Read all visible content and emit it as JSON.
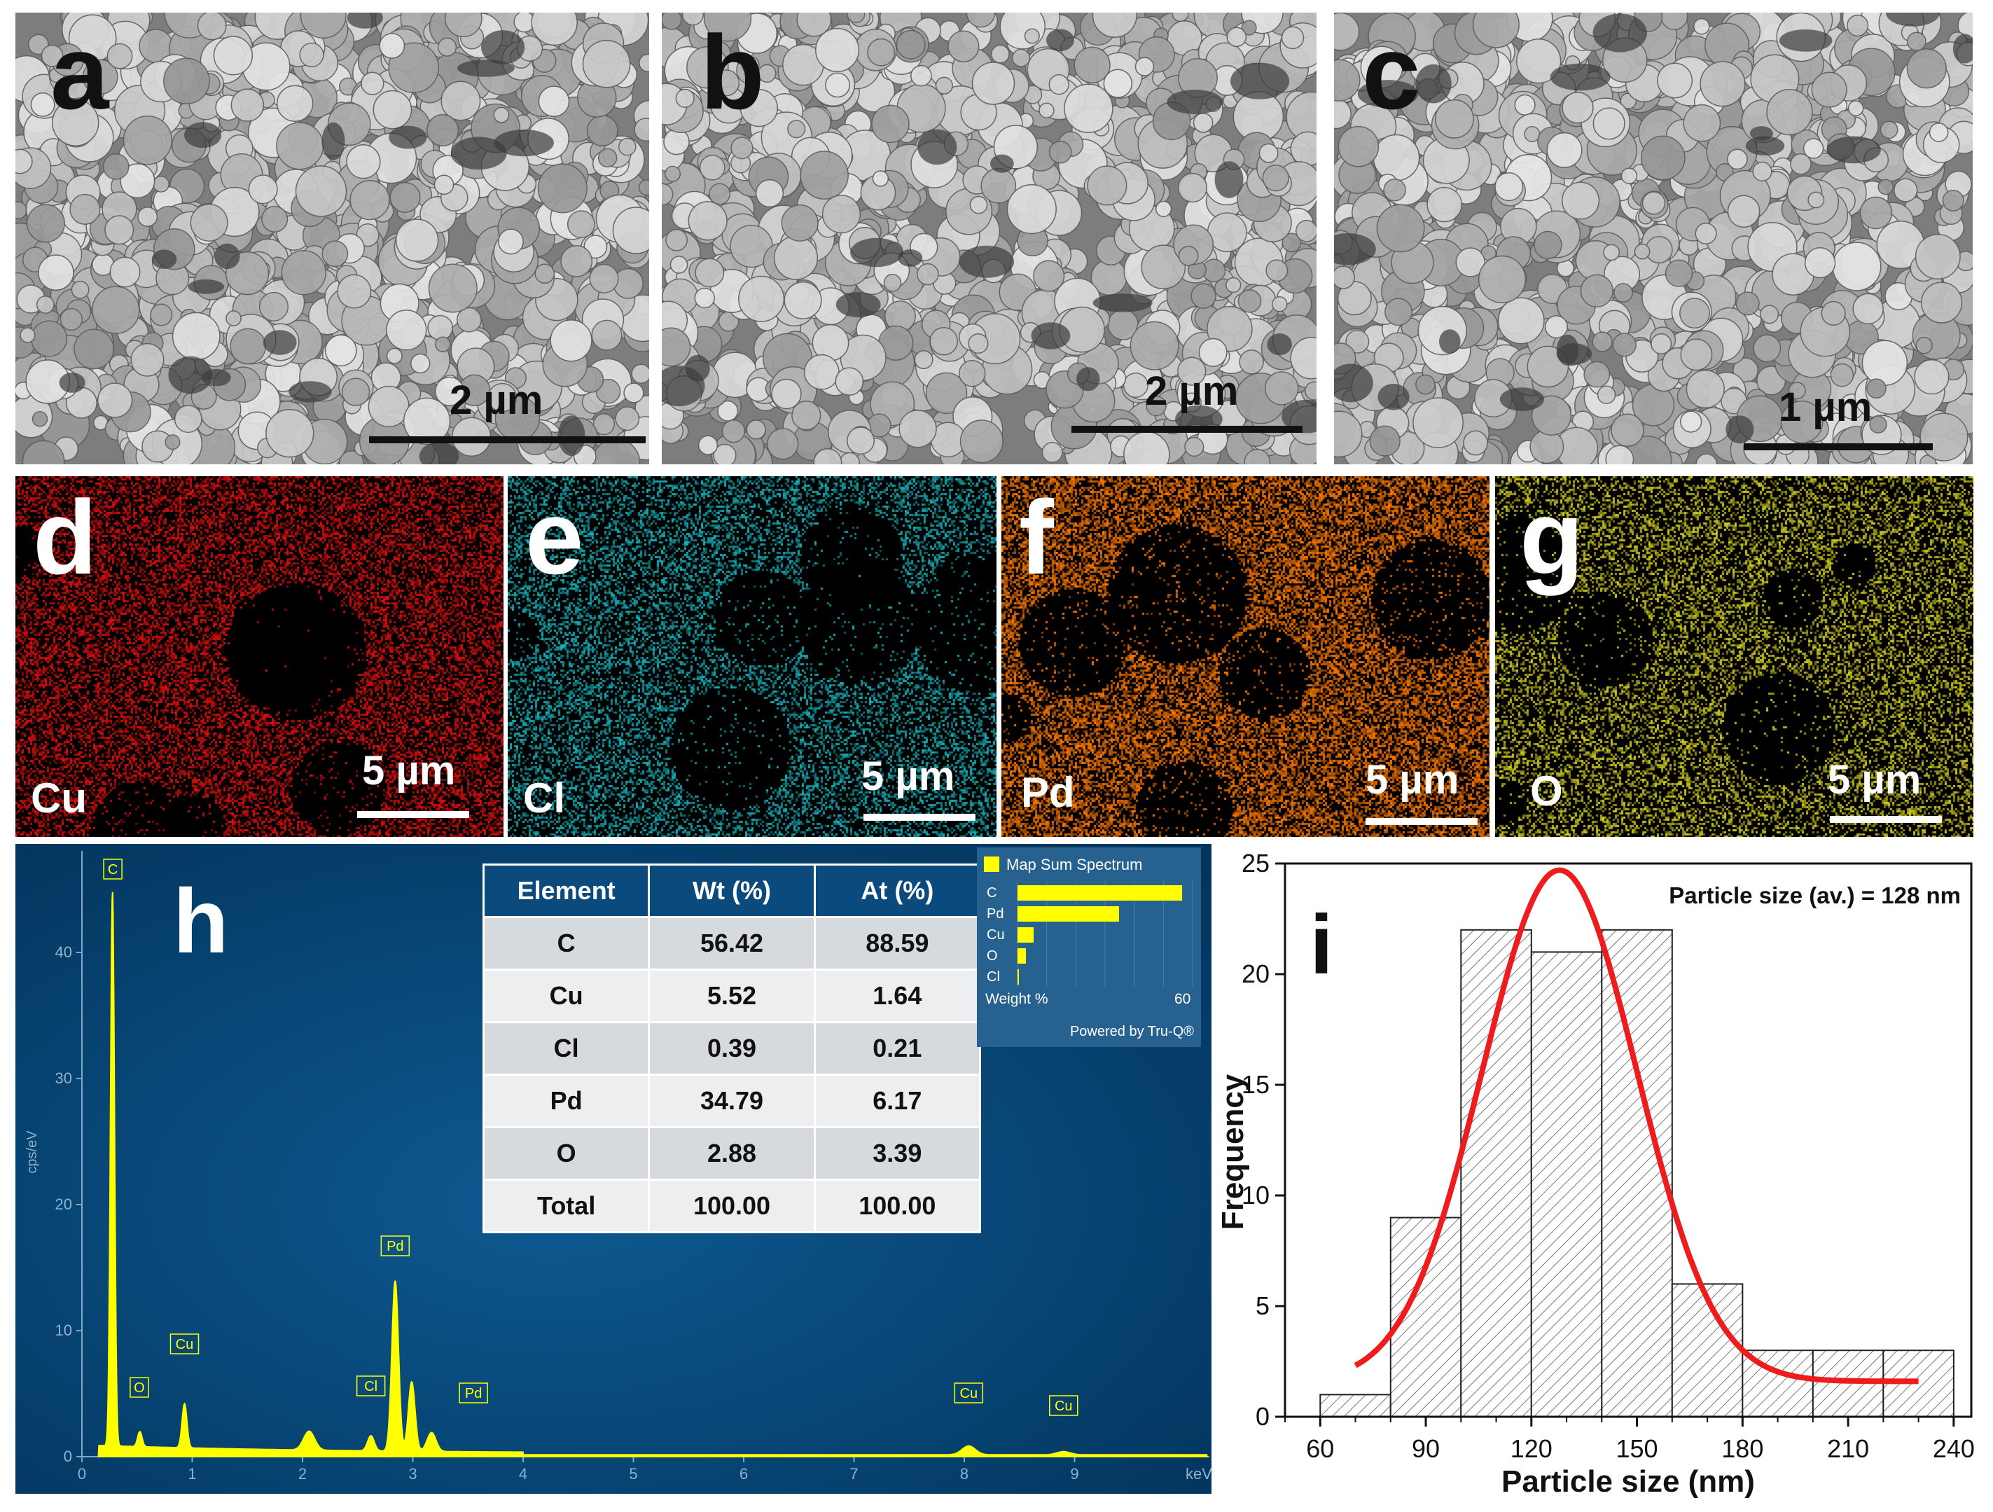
{
  "panels": {
    "a": {
      "letter": "a",
      "scale": "2 µm"
    },
    "b": {
      "letter": "b",
      "scale": "2 µm"
    },
    "c": {
      "letter": "c",
      "scale": "1 µm"
    },
    "d": {
      "letter": "d",
      "element": "Cu",
      "scale": "5 µm",
      "color": "#e01010"
    },
    "e": {
      "letter": "e",
      "element": "Cl",
      "scale": "5 µm",
      "color": "#18b4bc"
    },
    "f": {
      "letter": "f",
      "element": "Pd",
      "scale": "5 µm",
      "color": "#ff7a00"
    },
    "g": {
      "letter": "g",
      "element": "O",
      "scale": "5 µm",
      "color": "#d4d020"
    }
  },
  "eds": {
    "letter": "h",
    "background_color": "#053d6b",
    "spectrum_color": "#ffff00",
    "y_axis_label": "cps/eV",
    "x_unit": "keV",
    "x_ticks": [
      "0",
      "1",
      "2",
      "3",
      "4",
      "5",
      "6",
      "7",
      "8",
      "9",
      "keV"
    ],
    "y_ticks": [
      "0",
      "10",
      "20",
      "30",
      "40"
    ],
    "peak_labels": [
      {
        "label": "C",
        "kev": 0.28
      },
      {
        "label": "O",
        "kev": 0.52
      },
      {
        "label": "Cu",
        "kev": 0.93
      },
      {
        "label": "Cl",
        "kev": 2.62
      },
      {
        "label": "Pd",
        "kev": 2.84
      },
      {
        "label": "Pd",
        "kev": 3.55
      },
      {
        "label": "Cu",
        "kev": 8.04
      },
      {
        "label": "Cu",
        "kev": 8.9
      }
    ],
    "table": {
      "headers": [
        "Element",
        "Wt (%)",
        "At (%)"
      ],
      "rows": [
        [
          "C",
          "56.42",
          "88.59"
        ],
        [
          "Cu",
          "5.52",
          "1.64"
        ],
        [
          "Cl",
          "0.39",
          "0.21"
        ],
        [
          "Pd",
          "34.79",
          "6.17"
        ],
        [
          "O",
          "2.88",
          "3.39"
        ],
        [
          "Total",
          "100.00",
          "100.00"
        ]
      ]
    },
    "map_sum": {
      "title": "Map Sum Spectrum",
      "items": [
        {
          "label": "C",
          "value": 56.42
        },
        {
          "label": "Pd",
          "value": 34.79
        },
        {
          "label": "Cu",
          "value": 5.52
        },
        {
          "label": "O",
          "value": 2.88
        },
        {
          "label": "Cl",
          "value": 0.39
        }
      ],
      "axis_label": "Weight %",
      "axis_max": "60",
      "footer": "Powered by Tru-Q®"
    }
  },
  "chart_data": {
    "type": "bar",
    "panel_letter": "i",
    "annotation": "Particle size (av.) = 128 nm",
    "xlabel": "Particle size (nm)",
    "ylabel": "Frequency",
    "bin_edges": [
      60,
      80,
      100,
      120,
      140,
      160,
      180,
      200,
      220,
      240
    ],
    "values": [
      1,
      9,
      22,
      21,
      22,
      6,
      3,
      3,
      3
    ],
    "xlim": [
      50,
      245
    ],
    "ylim": [
      0,
      25
    ],
    "x_ticks": [
      "60",
      "90",
      "120",
      "150",
      "180",
      "210",
      "240"
    ],
    "y_ticks": [
      "0",
      "5",
      "10",
      "15",
      "20",
      "25"
    ],
    "fit": {
      "type": "gaussian",
      "color": "#ee1c1c",
      "center": 128,
      "peak": 24.7,
      "sigma": 22,
      "offset": 1.6,
      "x_range": [
        70,
        230
      ]
    }
  }
}
